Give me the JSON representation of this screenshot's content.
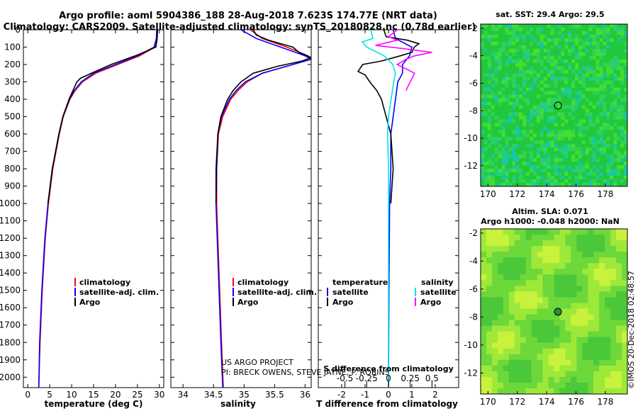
{
  "header": {
    "title_line1": "Argo profile: aoml 5904386_188 28-Aug-2018 7.623S 174.77E (NRT data)",
    "title_line2": "Climatology: CARS2009. Satellite-adjusted climatology: synTS_20180828.nc (0.78d earlier)"
  },
  "credit": {
    "project": "US ARGO PROJECT",
    "pi": "PI: BRECK OWENS, STEVE JAYNE, P. ROBINS",
    "stamp": "©IMOS 20-Dec-2018 02:48:57"
  },
  "colors": {
    "climatology": "#ff0000",
    "satellite": "#0000ff",
    "argo": "#000000",
    "salinity_satellite": "#00e5e5",
    "salinity_argo": "#ff00ff"
  },
  "chart_data": [
    {
      "type": "line",
      "name": "temperature-profile",
      "xlabel": "temperature (deg C)",
      "xlim": [
        -1,
        31
      ],
      "ylim": [
        2060,
        0
      ],
      "xticks": [
        0,
        5,
        10,
        15,
        20,
        25,
        30
      ],
      "xtick_labels": [
        "0",
        "5",
        "10",
        "15",
        "20",
        "25",
        "30"
      ],
      "yticks": [
        0,
        100,
        200,
        300,
        400,
        500,
        600,
        700,
        800,
        900,
        1000,
        1100,
        1200,
        1300,
        1400,
        1500,
        1600,
        1700,
        1800,
        1900,
        2000
      ],
      "ytick_labels": [
        "0",
        "100",
        "200",
        "300",
        "400",
        "500",
        "600",
        "700",
        "800",
        "900",
        "1000",
        "1100",
        "1200",
        "1300",
        "1400",
        "1500",
        "1600",
        "1700",
        "1800",
        "1900",
        "2000"
      ],
      "legend": [
        "climatology",
        "satellite-adj. clim.",
        "Argo"
      ],
      "series": [
        {
          "name": "climatology",
          "depth": [
            0,
            50,
            100,
            150,
            200,
            250,
            300,
            350,
            400,
            500,
            600,
            800,
            1000,
            1200,
            1500,
            1800,
            2060
          ],
          "values": [
            29.5,
            29.4,
            29.0,
            25.5,
            20.5,
            15.5,
            12.5,
            10.8,
            9.6,
            8.1,
            7.2,
            5.7,
            4.7,
            4.0,
            3.3,
            2.8,
            2.5
          ]
        },
        {
          "name": "satellite-adj. clim.",
          "depth": [
            0,
            50,
            100,
            150,
            200,
            250,
            300,
            350,
            400,
            500,
            600,
            800,
            1000,
            1200,
            1500,
            1800,
            2060
          ],
          "values": [
            29.4,
            29.3,
            28.8,
            25.0,
            20.0,
            15.0,
            12.2,
            10.6,
            9.5,
            8.0,
            7.1,
            5.6,
            4.6,
            3.9,
            3.2,
            2.7,
            2.5
          ]
        },
        {
          "name": "Argo",
          "depth": [
            0,
            50,
            100,
            150,
            200,
            250,
            280,
            300,
            350,
            400,
            500,
            600,
            800,
            1000
          ],
          "values": [
            29.6,
            29.5,
            29.2,
            24.5,
            19.0,
            14.5,
            12.0,
            11.2,
            10.3,
            9.4,
            8.0,
            7.1,
            5.6,
            4.6
          ]
        }
      ]
    },
    {
      "type": "line",
      "name": "salinity-profile",
      "xlabel": "salinity",
      "xlim": [
        33.8,
        36.1
      ],
      "ylim": [
        2060,
        0
      ],
      "xticks": [
        34,
        34.5,
        35,
        35.5,
        36
      ],
      "xtick_labels": [
        "34",
        "34.5",
        "35",
        "35.5",
        "36"
      ],
      "legend": [
        "climatology",
        "satellite-adj. clim.",
        "Argo"
      ],
      "series": [
        {
          "name": "climatology",
          "depth": [
            0,
            50,
            100,
            150,
            170,
            200,
            250,
            300,
            350,
            400,
            500,
            600,
            800,
            1000,
            1200,
            1500,
            1800,
            2060
          ],
          "values": [
            35.1,
            35.3,
            35.7,
            36.05,
            36.1,
            35.8,
            35.3,
            35.05,
            34.9,
            34.78,
            34.65,
            34.58,
            34.55,
            34.55,
            34.57,
            34.6,
            34.63,
            34.66
          ]
        },
        {
          "name": "satellite-adj. clim.",
          "depth": [
            0,
            50,
            100,
            150,
            170,
            200,
            250,
            300,
            350,
            400,
            500,
            600,
            800,
            1000,
            1200,
            1500,
            1800,
            2060
          ],
          "values": [
            34.95,
            35.2,
            35.6,
            36.0,
            36.1,
            35.8,
            35.3,
            35.02,
            34.87,
            34.76,
            34.63,
            34.57,
            34.54,
            34.54,
            34.56,
            34.59,
            34.62,
            34.65
          ]
        },
        {
          "name": "Argo",
          "depth": [
            0,
            30,
            60,
            80,
            100,
            130,
            160,
            180,
            210,
            250,
            300,
            350,
            400,
            500,
            600,
            800,
            1000
          ],
          "values": [
            35.15,
            35.2,
            35.4,
            35.6,
            35.8,
            35.9,
            36.1,
            35.95,
            35.55,
            35.15,
            34.95,
            34.82,
            34.73,
            34.62,
            34.57,
            34.55,
            34.54
          ]
        }
      ]
    },
    {
      "type": "line",
      "name": "difference-profile",
      "xlabel": "T difference from climatology",
      "xlabel_top": "S difference from climatology",
      "xlim": [
        -3,
        3
      ],
      "ylim": [
        2060,
        0
      ],
      "xticks": [
        -2,
        -1,
        0,
        1,
        2
      ],
      "xtick_labels": [
        "-2",
        "-1",
        "0",
        "1",
        "2"
      ],
      "sticks": [
        -0.5,
        -0.25,
        0,
        0.25,
        0.5
      ],
      "stick_labels": [
        "-0.5",
        "-0.25",
        "0",
        "0.25",
        "0.5"
      ],
      "legend_temperature": {
        "heading": "temperature",
        "items": [
          "satellite",
          "Argo"
        ]
      },
      "legend_salinity": {
        "heading": "salinity",
        "items": [
          "satellite",
          "Argo"
        ]
      },
      "series": [
        {
          "name": "T satellite",
          "depth": [
            0,
            50,
            100,
            150,
            200,
            250,
            300,
            400,
            600,
            800,
            1000,
            1500,
            2060
          ],
          "values": [
            0.2,
            0.3,
            1.0,
            0.9,
            0.6,
            0.6,
            0.4,
            0.3,
            0.1,
            0.1,
            0.05,
            0.02,
            0.0
          ]
        },
        {
          "name": "T Argo",
          "depth": [
            0,
            40,
            60,
            80,
            100,
            130,
            150,
            180,
            200,
            240,
            260,
            300,
            350,
            400,
            450,
            500,
            600,
            700,
            800,
            1000
          ],
          "values": [
            -0.2,
            -0.1,
            0.8,
            1.3,
            1.1,
            1.0,
            0.5,
            -0.3,
            -1.1,
            -1.3,
            -1.0,
            -0.8,
            -0.5,
            -0.3,
            -0.2,
            -0.1,
            0.1,
            0.15,
            0.2,
            0.1
          ]
        },
        {
          "name": "S satellite",
          "depth": [
            0,
            50,
            70,
            100,
            150,
            200,
            250,
            300,
            400,
            500,
            600,
            800,
            1000,
            1500,
            2060
          ],
          "values": [
            -0.2,
            -0.18,
            -0.3,
            -0.25,
            -0.05,
            0.05,
            0.08,
            0.06,
            0.03,
            0.0,
            -0.01,
            0.0,
            0.0,
            0.0,
            0.0
          ]
        },
        {
          "name": "S Argo",
          "depth": [
            0,
            40,
            60,
            90,
            110,
            130,
            150,
            170,
            200,
            250,
            300,
            350
          ],
          "values": [
            0.1,
            0.0,
            0.1,
            -0.15,
            0.2,
            0.5,
            0.3,
            0.2,
            0.1,
            0.3,
            0.25,
            0.2
          ]
        }
      ]
    },
    {
      "type": "heatmap",
      "name": "sst-map",
      "title": "sat. SST: 29.4 Argo: 29.5",
      "xticks": [
        170,
        172,
        174,
        176,
        178
      ],
      "xtick_labels": [
        "170",
        "172",
        "174",
        "176",
        "178"
      ],
      "yticks": [
        -2,
        -4,
        -6,
        -8,
        -10,
        -12
      ],
      "ytick_labels": [
        "-2",
        "-4",
        "-6",
        "-8",
        "-10",
        "-12"
      ],
      "xlim": [
        169.5,
        179.5
      ],
      "ylim": [
        -13.5,
        -1.7
      ],
      "marker": {
        "lon": 174.77,
        "lat": -7.623
      }
    },
    {
      "type": "heatmap",
      "name": "sla-map",
      "title_line1": "Altim. SLA: 0.071",
      "title_line2": "Argo h1000: -0.048 h2000: NaN",
      "xticks": [
        170,
        172,
        174,
        176,
        178
      ],
      "xtick_labels": [
        "170",
        "172",
        "174",
        "176",
        "178"
      ],
      "yticks": [
        -2,
        -4,
        -6,
        -8,
        -10,
        -12
      ],
      "ytick_labels": [
        "-2",
        "-4",
        "-6",
        "-8",
        "-10",
        "-12"
      ],
      "xlim": [
        169.5,
        179.5
      ],
      "ylim": [
        -13.5,
        -1.7
      ],
      "marker": {
        "lon": 174.77,
        "lat": -7.623
      }
    }
  ]
}
